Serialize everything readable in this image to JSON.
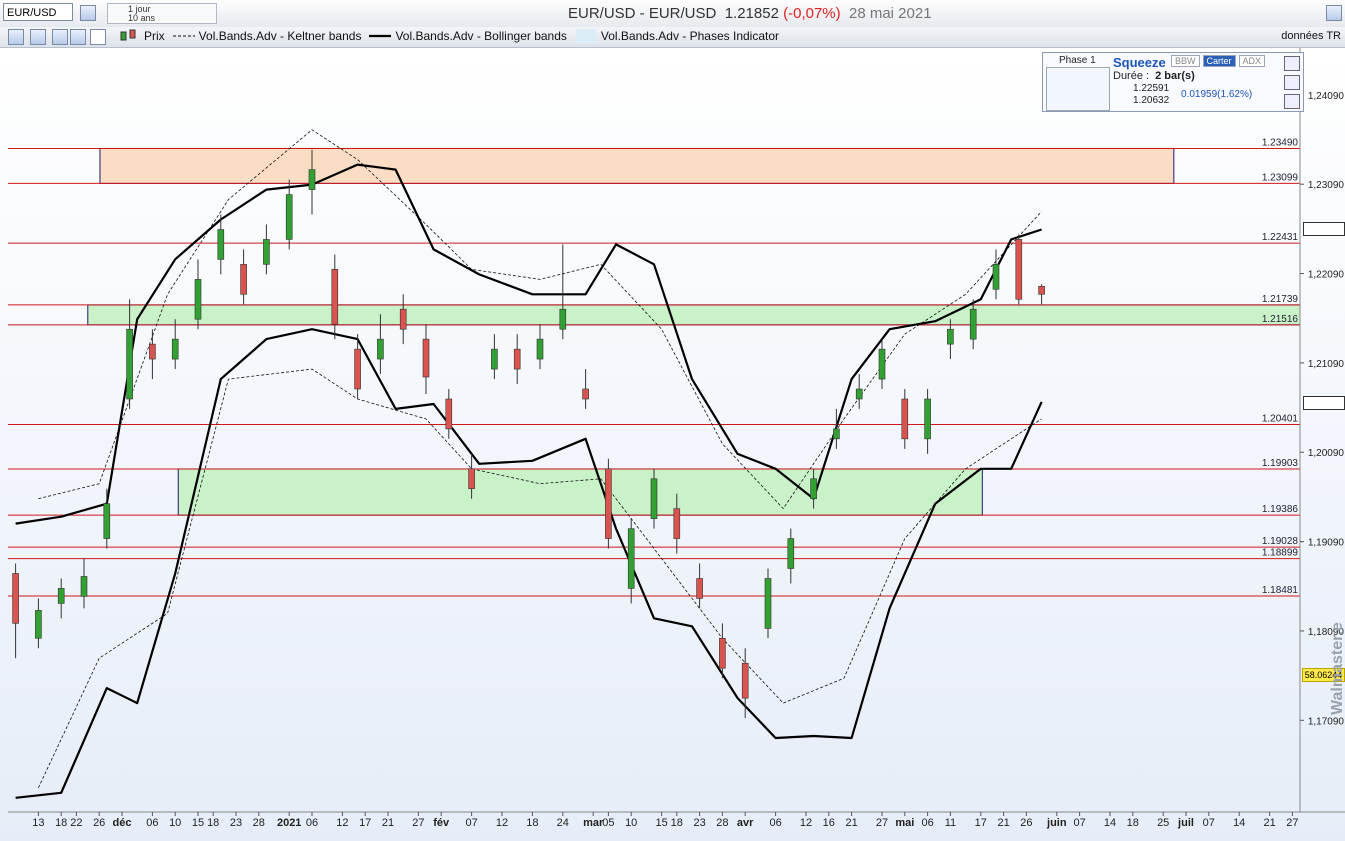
{
  "header": {
    "symbol": "EUR/USD",
    "period": "1 jour",
    "range": "10 ans",
    "title": "EUR/USD - EUR/USD",
    "price": "1.21852",
    "change": "(-0,07%)",
    "date": "28 mai 2021"
  },
  "toolbar": {
    "source": "données TR"
  },
  "squeeze_panel": {
    "phase": "Phase 1",
    "title": "Squeeze",
    "tabs": [
      "BBW",
      "Carter",
      "ADX"
    ],
    "duration_label": "Durée :",
    "duration": "2 bar(s)",
    "upper": "1.22591",
    "lower": "1.20632",
    "diff": "0.01959(1.62%)"
  },
  "side_label": "58.06244",
  "watermark": "Walmaster.e",
  "chart_data": {
    "type": "candlestick",
    "price_name": "Prix",
    "up_color": "#33a033",
    "down_color": "#d9534f",
    "x": [
      -3,
      0,
      3,
      6,
      9,
      12,
      15,
      18,
      21,
      24,
      27,
      30,
      33,
      36,
      39,
      42,
      45,
      48,
      51,
      54,
      57,
      60,
      63,
      66,
      69,
      72,
      75,
      78,
      81,
      84,
      87,
      90,
      93,
      96,
      99,
      102,
      105,
      108,
      111,
      114,
      117,
      120,
      123,
      126,
      129,
      132
    ],
    "open": [
      1.18733,
      1.18008,
      1.18398,
      1.18477,
      1.19124,
      1.20686,
      1.213,
      1.21133,
      1.21579,
      1.22249,
      1.22193,
      1.22193,
      1.22472,
      1.2303,
      1.22137,
      1.21244,
      1.21133,
      1.21691,
      1.21356,
      1.20686,
      1.19905,
      1.21021,
      1.21244,
      1.21133,
      1.21467,
      1.20798,
      1.19905,
      1.18566,
      1.19347,
      1.19459,
      1.18677,
      1.18008,
      1.17729,
      1.18119,
      1.18789,
      1.1957,
      1.2024,
      1.20686,
      1.20909,
      1.20686,
      1.2024,
      1.213,
      1.21356,
      1.21914,
      1.22472,
      1.21947
    ],
    "high": [
      1.18845,
      1.18454,
      1.18677,
      1.18901,
      1.19682,
      1.21802,
      1.21467,
      1.21579,
      1.22249,
      1.22751,
      1.2236,
      1.22639,
      1.23141,
      1.23476,
      1.22304,
      1.21412,
      1.21635,
      1.21858,
      1.21523,
      1.20798,
      1.20072,
      1.21412,
      1.21412,
      1.21523,
      1.22416,
      1.21021,
      1.20017,
      1.19347,
      1.19905,
      1.19626,
      1.18845,
      1.18175,
      1.17896,
      1.18789,
      1.19235,
      1.19905,
      1.20575,
      1.20965,
      1.21356,
      1.20798,
      1.20798,
      1.21579,
      1.21802,
      1.2236,
      1.22528,
      1.2197
    ],
    "low": [
      1.17785,
      1.17896,
      1.18231,
      1.18343,
      1.19012,
      1.20575,
      1.20909,
      1.21021,
      1.21467,
      1.22081,
      1.21746,
      1.22081,
      1.2236,
      1.22751,
      1.21356,
      1.20686,
      1.20965,
      1.213,
      1.20742,
      1.2024,
      1.1957,
      1.20909,
      1.20854,
      1.21021,
      1.21356,
      1.20575,
      1.19012,
      1.18398,
      1.19235,
      1.18956,
      1.18343,
      1.17561,
      1.17115,
      1.18008,
      1.18622,
      1.19459,
      1.20128,
      1.20575,
      1.20798,
      1.20128,
      1.20072,
      1.21133,
      1.21244,
      1.21802,
      1.21746,
      1.21746
    ],
    "close": [
      1.18175,
      1.1832,
      1.18566,
      1.187,
      1.19514,
      1.21467,
      1.21133,
      1.21356,
      1.22025,
      1.22583,
      1.21858,
      1.22472,
      1.22974,
      1.23253,
      1.21523,
      1.20798,
      1.21356,
      1.21467,
      1.20932,
      1.20351,
      1.19682,
      1.21244,
      1.21021,
      1.21356,
      1.21691,
      1.20686,
      1.19124,
      1.19235,
      1.19793,
      1.19124,
      1.18454,
      1.17673,
      1.17338,
      1.18677,
      1.19124,
      1.19793,
      1.20351,
      1.20798,
      1.21244,
      1.2024,
      1.20686,
      1.21467,
      1.21691,
      1.22193,
      1.21802,
      1.21858
    ],
    "series": [
      {
        "name": "Vol.Bands.Adv - Keltner bands",
        "color": "#111111",
        "style": "dashed",
        "x": [
          0,
          8,
          17,
          25,
          36,
          42,
          51,
          57,
          66,
          74,
          82,
          90,
          98,
          106,
          114,
          122,
          132
        ],
        "upper": [
          1.1957,
          1.19738,
          1.21858,
          1.22918,
          1.23699,
          1.23365,
          1.22639,
          1.22137,
          1.22025,
          1.22193,
          1.21467,
          1.20184,
          1.19459,
          1.20463,
          1.21412,
          1.21858,
          1.22784
        ],
        "lower": [
          1.16334,
          1.17785,
          1.18287,
          1.20909,
          1.21021,
          1.20686,
          1.20463,
          1.19905,
          1.19738,
          1.19793,
          1.18901,
          1.18008,
          1.17282,
          1.17561,
          1.19124,
          1.19905,
          1.20463
        ]
      },
      {
        "name": "Vol.Bands.Adv - Bollinger bands",
        "color": "#000000",
        "style": "solid",
        "x": [
          -3,
          3,
          9,
          13,
          18,
          24,
          30,
          36,
          42,
          47,
          52,
          58,
          65,
          72,
          76,
          81,
          86,
          92,
          97,
          102,
          107,
          112,
          118,
          124,
          128,
          132
        ],
        "upper": [
          1.19291,
          1.19369,
          1.19514,
          1.21579,
          1.22249,
          1.22695,
          1.2303,
          1.23086,
          1.23309,
          1.23253,
          1.2236,
          1.22081,
          1.21858,
          1.21858,
          1.22416,
          1.22193,
          1.20909,
          1.20072,
          1.19905,
          1.1957,
          1.20909,
          1.21467,
          1.21557,
          1.21802,
          1.22472,
          1.22583
        ],
        "lower": [
          1.16222,
          1.16278,
          1.1745,
          1.17282,
          1.18733,
          1.20909,
          1.21356,
          1.21467,
          1.21356,
          1.20575,
          1.2063,
          1.19961,
          1.19994,
          1.2024,
          1.19235,
          1.18231,
          1.18142,
          1.17338,
          1.16892,
          1.16914,
          1.16892,
          1.18343,
          1.19514,
          1.19905,
          1.19905,
          1.20653
        ]
      }
    ],
    "phases": {
      "name": "Vol.Bands.Adv - Phases Indicator",
      "color": "#dcedf8",
      "stroke": "#1a1a6e",
      "zones": [
        {
          "from": 1.23099,
          "to": 1.2349,
          "x0": 8.1,
          "x1": 149.4,
          "color": "#fbdcc4"
        },
        {
          "from": 1.21516,
          "to": 1.21739,
          "x0": 6.5,
          "x1": 172,
          "color": "#c9f2c9"
        },
        {
          "from": 1.19386,
          "to": 1.19903,
          "x0": 18.4,
          "x1": 124.2,
          "color": "#c9f2c9"
        }
      ]
    },
    "level_color": "#d01818",
    "levels": [
      {
        "value": 1.2349,
        "label": "1.23490"
      },
      {
        "value": 1.23099,
        "label": "1.23099"
      },
      {
        "value": 1.22431,
        "label": "1.22431"
      },
      {
        "value": 1.21739,
        "label": "1.21739"
      },
      {
        "value": 1.21516,
        "label": "1.21516"
      },
      {
        "value": 1.20401,
        "label": "1.20401"
      },
      {
        "value": 1.19903,
        "label": "1.19903"
      },
      {
        "value": 1.19386,
        "label": "1.19386"
      },
      {
        "value": 1.19028,
        "label": "1.19028"
      },
      {
        "value": 1.18899,
        "label": "1.18899"
      },
      {
        "value": 1.18481,
        "label": "1.18481"
      }
    ],
    "ylim": [
      1.16086,
      1.24592
    ],
    "yticks": [
      {
        "value": 1.1709,
        "label": "1,17090"
      },
      {
        "value": 1.1809,
        "label": "1,18090"
      },
      {
        "value": 1.1909,
        "label": "1,19090"
      },
      {
        "value": 1.2009,
        "label": "1,20090"
      },
      {
        "value": 1.2109,
        "label": "1,21090"
      },
      {
        "value": 1.2209,
        "label": "1,22090"
      },
      {
        "value": 1.2309,
        "label": "1,23090"
      },
      {
        "value": 1.2409,
        "label": "1,24090"
      }
    ],
    "xlim": [
      -4,
      166
    ],
    "xticks": [
      {
        "value": 0,
        "label": "13"
      },
      {
        "value": 3,
        "label": "18"
      },
      {
        "value": 5,
        "label": "22"
      },
      {
        "value": 8,
        "label": "26"
      },
      {
        "value": 11,
        "label": "déc"
      },
      {
        "value": 15,
        "label": "06"
      },
      {
        "value": 18,
        "label": "10"
      },
      {
        "value": 21,
        "label": "15"
      },
      {
        "value": 23,
        "label": "18"
      },
      {
        "value": 26,
        "label": "23"
      },
      {
        "value": 29,
        "label": "28"
      },
      {
        "value": 33,
        "label": "2021"
      },
      {
        "value": 36,
        "label": "06"
      },
      {
        "value": 40,
        "label": "12"
      },
      {
        "value": 43,
        "label": "17"
      },
      {
        "value": 46,
        "label": "21"
      },
      {
        "value": 50,
        "label": "27"
      },
      {
        "value": 53,
        "label": "fév"
      },
      {
        "value": 57,
        "label": "07"
      },
      {
        "value": 61,
        "label": "12"
      },
      {
        "value": 65,
        "label": "18"
      },
      {
        "value": 69,
        "label": "24"
      },
      {
        "value": 73,
        "label": "mar"
      },
      {
        "value": 75,
        "label": "05"
      },
      {
        "value": 78,
        "label": "10"
      },
      {
        "value": 82,
        "label": "15"
      },
      {
        "value": 84,
        "label": "18"
      },
      {
        "value": 87,
        "label": "23"
      },
      {
        "value": 90,
        "label": "28"
      },
      {
        "value": 93,
        "label": "avr"
      },
      {
        "value": 97,
        "label": "06"
      },
      {
        "value": 101,
        "label": "12"
      },
      {
        "value": 104,
        "label": "16"
      },
      {
        "value": 107,
        "label": "21"
      },
      {
        "value": 111,
        "label": "27"
      },
      {
        "value": 114,
        "label": "mai"
      },
      {
        "value": 117,
        "label": "06"
      },
      {
        "value": 120,
        "label": "11"
      },
      {
        "value": 124,
        "label": "17"
      },
      {
        "value": 127,
        "label": "21"
      },
      {
        "value": 130,
        "label": "26"
      },
      {
        "value": 134,
        "label": "juin"
      },
      {
        "value": 137,
        "label": "07"
      },
      {
        "value": 141,
        "label": "14"
      },
      {
        "value": 144,
        "label": "18"
      },
      {
        "value": 148,
        "label": "25"
      },
      {
        "value": 151,
        "label": "juil"
      },
      {
        "value": 154,
        "label": "07"
      },
      {
        "value": 158,
        "label": "14"
      },
      {
        "value": 162,
        "label": "21"
      },
      {
        "value": 165,
        "label": "27"
      }
    ]
  }
}
